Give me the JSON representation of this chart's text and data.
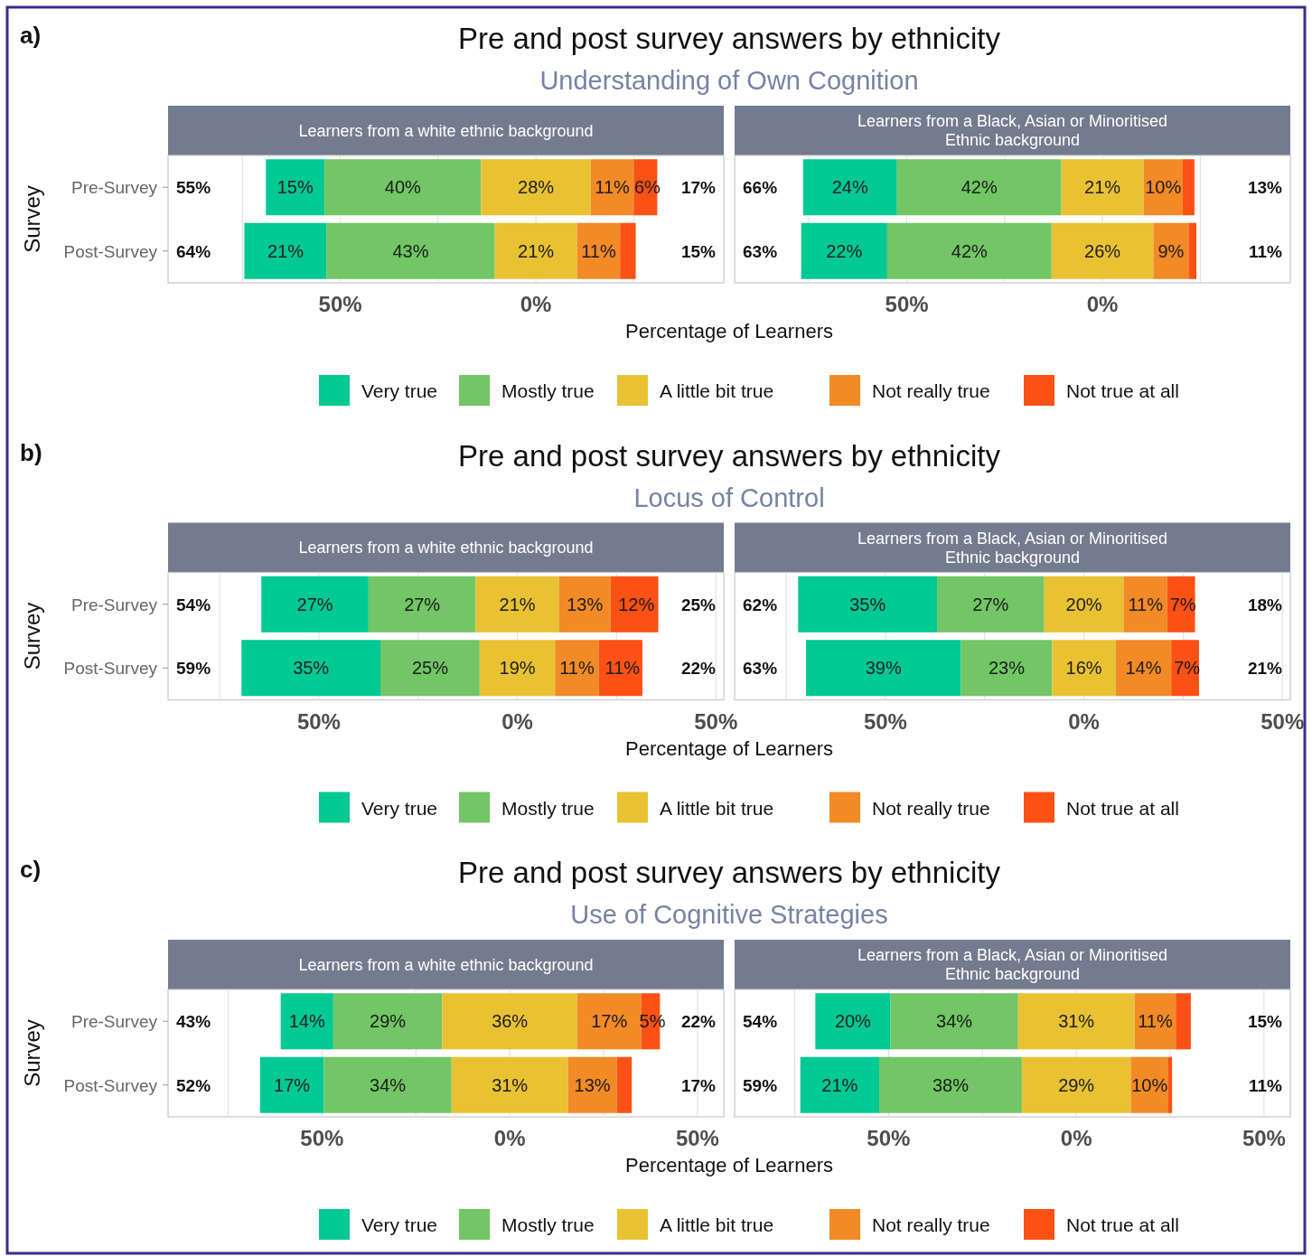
{
  "chart_data": [
    {
      "type": "other",
      "title": "Pre and post survey answers by ethnicity",
      "subtitle": "Understanding of Own Cognition",
      "annotations": [
        "a)"
      ]
    },
    {
      "type": "bar",
      "orientation": "horizontal",
      "title": "Learners from a white ethnic background",
      "ylabel": "Survey",
      "xlabel": "Percentage of Learners",
      "categories": [
        "Pre-Survey",
        "Post-Survey"
      ],
      "xlim": [
        -94,
        48
      ],
      "xticks": [
        {
          "value": -75,
          "label": null
        },
        {
          "value": -50,
          "label": "50%"
        },
        {
          "value": -25,
          "label": null
        },
        {
          "value": 0,
          "label": "0%"
        },
        {
          "value": 25,
          "label": null
        }
      ],
      "grid": "x",
      "legend": "bottom",
      "annotations": [
        "55%",
        "17%",
        "64%",
        "15%"
      ],
      "series": [
        {
          "name": "Very true",
          "color": "#00c994",
          "base": [
            -69,
            -74.5
          ],
          "values": [
            15,
            21
          ],
          "value_labels": [
            "15%",
            "21%"
          ]
        },
        {
          "name": "Mostly true",
          "color": "#72c665",
          "base": [
            -54,
            -53.5
          ],
          "values": [
            40,
            43
          ],
          "value_labels": [
            "40%",
            "43%"
          ]
        },
        {
          "name": "A little bit true",
          "color": "#e9c233",
          "base": [
            -14,
            -10.5
          ],
          "values": [
            28,
            21
          ],
          "value_labels": [
            "28%",
            "21%"
          ]
        },
        {
          "name": "Not really true",
          "color": "#f28a26",
          "base": [
            14,
            10.5
          ],
          "values": [
            11,
            11
          ],
          "value_labels": [
            "11%",
            "11%"
          ]
        },
        {
          "name": "Not true at all",
          "color": "#fb5114",
          "base": [
            25,
            21.5
          ],
          "values": [
            6,
            4
          ],
          "value_labels": [
            "6%",
            null
          ]
        }
      ]
    },
    {
      "type": "bar",
      "orientation": "horizontal",
      "title": "Learners from a Black, Asian or Minoritised Ethnic background",
      "xlim": [
        -94,
        48
      ],
      "xticks": [
        {
          "value": -75,
          "label": null
        },
        {
          "value": -50,
          "label": "50%"
        },
        {
          "value": -25,
          "label": null
        },
        {
          "value": 0,
          "label": "0%"
        },
        {
          "value": 25,
          "label": null
        }
      ],
      "grid": "x",
      "tick_labels": "x",
      "annotations": [
        "66%",
        "13%",
        "63%",
        "11%"
      ],
      "series": [
        {
          "color": "#00c994",
          "base": [
            -76.5,
            -77
          ],
          "values": [
            24,
            22
          ],
          "value_labels": [
            "24%",
            "22%"
          ]
        },
        {
          "color": "#72c665",
          "base": [
            -52.5,
            -55
          ],
          "values": [
            42,
            42
          ],
          "value_labels": [
            "42%",
            "42%"
          ]
        },
        {
          "color": "#e9c233",
          "base": [
            -10.5,
            -13
          ],
          "values": [
            21,
            26
          ],
          "value_labels": [
            "21%",
            "26%"
          ]
        },
        {
          "color": "#f28a26",
          "base": [
            10.5,
            13
          ],
          "values": [
            10,
            9
          ],
          "value_labels": [
            "10%",
            "9%"
          ]
        },
        {
          "color": "#fb5114",
          "base": [
            20.5,
            22
          ],
          "values": [
            3,
            2
          ],
          "value_labels": [
            null,
            null
          ]
        }
      ]
    },
    {
      "type": "other",
      "title": "Pre and post survey answers by ethnicity",
      "subtitle": "Locus of Control",
      "annotations": [
        "b)"
      ]
    },
    {
      "type": "bar",
      "orientation": "horizontal",
      "title": "Learners from a white ethnic background",
      "ylabel": "Survey",
      "xlabel": "Percentage of Learners",
      "categories": [
        "Pre-Survey",
        "Post-Survey"
      ],
      "xlim": [
        -88,
        52
      ],
      "xticks": [
        {
          "value": -75,
          "label": null
        },
        {
          "value": -50,
          "label": "50%"
        },
        {
          "value": -25,
          "label": null
        },
        {
          "value": 0,
          "label": "0%"
        },
        {
          "value": 25,
          "label": null
        },
        {
          "value": 50,
          "label": "50%"
        }
      ],
      "grid": "x",
      "legend": "bottom",
      "annotations": [
        "54%",
        "25%",
        "59%",
        "22%"
      ],
      "series": [
        {
          "name": "Very true",
          "color": "#00c994",
          "base": [
            -64.5,
            -69.5
          ],
          "values": [
            27,
            35
          ],
          "value_labels": [
            "27%",
            "35%"
          ]
        },
        {
          "name": "Mostly true",
          "color": "#72c665",
          "base": [
            -37.5,
            -34.5
          ],
          "values": [
            27,
            25
          ],
          "value_labels": [
            "27%",
            "25%"
          ]
        },
        {
          "name": "A little bit true",
          "color": "#e9c233",
          "base": [
            -10.5,
            -9.5
          ],
          "values": [
            21,
            19
          ],
          "value_labels": [
            "21%",
            "19%"
          ]
        },
        {
          "name": "Not really true",
          "color": "#f28a26",
          "base": [
            10.5,
            9.5
          ],
          "values": [
            13,
            11
          ],
          "value_labels": [
            "13%",
            "11%"
          ]
        },
        {
          "name": "Not true at all",
          "color": "#fb5114",
          "base": [
            23.5,
            20.5
          ],
          "values": [
            12,
            11
          ],
          "value_labels": [
            "12%",
            "11%"
          ]
        }
      ]
    },
    {
      "type": "bar",
      "orientation": "horizontal",
      "title": "Learners from a Black, Asian or Minoritised Ethnic background",
      "xlim": [
        -88,
        52
      ],
      "xticks": [
        {
          "value": -75,
          "label": null
        },
        {
          "value": -50,
          "label": "50%"
        },
        {
          "value": -25,
          "label": null
        },
        {
          "value": 0,
          "label": "0%"
        },
        {
          "value": 25,
          "label": null
        },
        {
          "value": 50,
          "label": "50%"
        }
      ],
      "grid": "x",
      "tick_labels": "x",
      "annotations": [
        "62%",
        "18%",
        "63%",
        "21%"
      ],
      "series": [
        {
          "color": "#00c994",
          "base": [
            -72,
            -70
          ],
          "values": [
            35,
            39
          ],
          "value_labels": [
            "35%",
            "39%"
          ]
        },
        {
          "color": "#72c665",
          "base": [
            -37,
            -31
          ],
          "values": [
            27,
            23
          ],
          "value_labels": [
            "27%",
            "23%"
          ]
        },
        {
          "color": "#e9c233",
          "base": [
            -10,
            -8
          ],
          "values": [
            20,
            16
          ],
          "value_labels": [
            "20%",
            "16%"
          ]
        },
        {
          "color": "#f28a26",
          "base": [
            10,
            8
          ],
          "values": [
            11,
            14
          ],
          "value_labels": [
            "11%",
            "14%"
          ]
        },
        {
          "color": "#fb5114",
          "base": [
            21,
            22
          ],
          "values": [
            7,
            7
          ],
          "value_labels": [
            "7%",
            "7%"
          ]
        }
      ]
    },
    {
      "type": "other",
      "title": "Pre and post survey answers by ethnicity",
      "subtitle": "Use of Cognitive Strategies",
      "annotations": [
        "c)"
      ]
    },
    {
      "type": "bar",
      "orientation": "horizontal",
      "title": "Learners from a white ethnic background",
      "ylabel": "Survey",
      "xlabel": "Percentage of Learners",
      "categories": [
        "Pre-Survey",
        "Post-Survey"
      ],
      "xlim": [
        -91,
        57
      ],
      "xticks": [
        {
          "value": -75,
          "label": null
        },
        {
          "value": -50,
          "label": "50%"
        },
        {
          "value": -25,
          "label": null
        },
        {
          "value": 0,
          "label": "0%"
        },
        {
          "value": 25,
          "label": null
        },
        {
          "value": 50,
          "label": "50%"
        }
      ],
      "grid": "x",
      "legend": "bottom",
      "annotations": [
        "43%",
        "22%",
        "52%",
        "17%"
      ],
      "series": [
        {
          "name": "Very true",
          "color": "#00c994",
          "base": [
            -61,
            -66.5
          ],
          "values": [
            14,
            17
          ],
          "value_labels": [
            "14%",
            "17%"
          ]
        },
        {
          "name": "Mostly true",
          "color": "#72c665",
          "base": [
            -47,
            -49.5
          ],
          "values": [
            29,
            34
          ],
          "value_labels": [
            "29%",
            "34%"
          ]
        },
        {
          "name": "A little bit true",
          "color": "#e9c233",
          "base": [
            -18,
            -15.5
          ],
          "values": [
            36,
            31
          ],
          "value_labels": [
            "36%",
            "31%"
          ]
        },
        {
          "name": "Not really true",
          "color": "#f28a26",
          "base": [
            18,
            15.5
          ],
          "values": [
            17,
            13
          ],
          "value_labels": [
            "17%",
            "13%"
          ]
        },
        {
          "name": "Not true at all",
          "color": "#fb5114",
          "base": [
            35,
            28.5
          ],
          "values": [
            5,
            4
          ],
          "value_labels": [
            "5%",
            null
          ]
        }
      ]
    },
    {
      "type": "bar",
      "orientation": "horizontal",
      "title": "Learners from a Black, Asian or Minoritised Ethnic background",
      "xlim": [
        -91,
        57
      ],
      "xticks": [
        {
          "value": -75,
          "label": null
        },
        {
          "value": -50,
          "label": "50%"
        },
        {
          "value": -25,
          "label": null
        },
        {
          "value": 0,
          "label": "0%"
        },
        {
          "value": 25,
          "label": null
        },
        {
          "value": 50,
          "label": "50%"
        }
      ],
      "grid": "x",
      "tick_labels": "x",
      "annotations": [
        "54%",
        "15%",
        "59%",
        "11%"
      ],
      "series": [
        {
          "color": "#00c994",
          "base": [
            -69.5,
            -73.5
          ],
          "values": [
            20,
            21
          ],
          "value_labels": [
            "20%",
            "21%"
          ]
        },
        {
          "color": "#72c665",
          "base": [
            -49.5,
            -52.5
          ],
          "values": [
            34,
            38
          ],
          "value_labels": [
            "34%",
            "38%"
          ]
        },
        {
          "color": "#e9c233",
          "base": [
            -15.5,
            -14.5
          ],
          "values": [
            31,
            29
          ],
          "value_labels": [
            "31%",
            "29%"
          ]
        },
        {
          "color": "#f28a26",
          "base": [
            15.5,
            14.5
          ],
          "values": [
            11,
            10
          ],
          "value_labels": [
            "11%",
            "10%"
          ]
        },
        {
          "color": "#fb5114",
          "base": [
            26.5,
            24.5
          ],
          "values": [
            4,
            1
          ],
          "value_labels": [
            null,
            null
          ]
        }
      ]
    }
  ]
}
